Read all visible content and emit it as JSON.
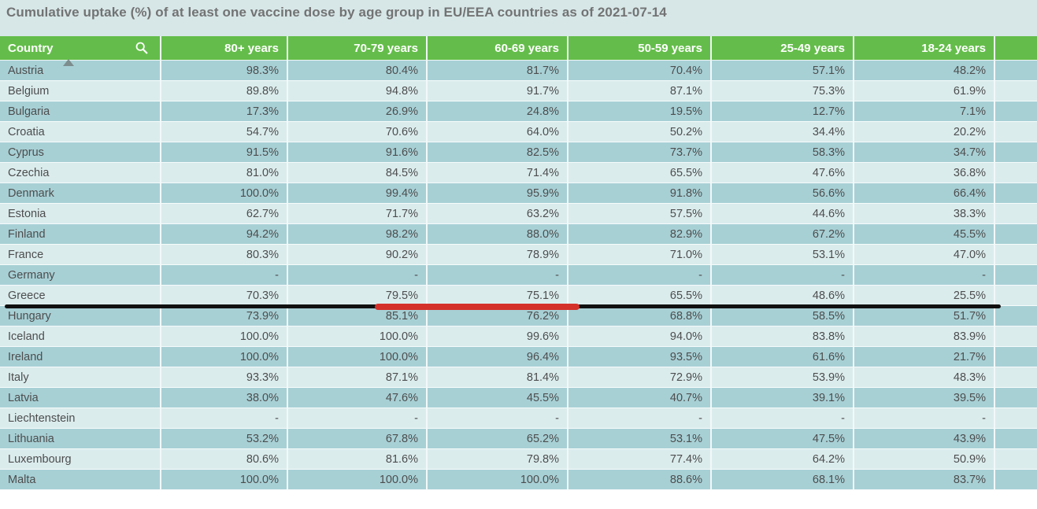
{
  "title": "Cumulative uptake (%) of at least one vaccine dose by age group in EU/EEA countries as of 2021-07-14",
  "table": {
    "columns": [
      "Country",
      "80+ years",
      "70-79 years",
      "60-69 years",
      "50-59 years",
      "25-49 years",
      "18-24 years"
    ],
    "sort": {
      "column": "Country",
      "direction": "ascending"
    },
    "rows": [
      {
        "country": "Austria",
        "values": [
          "98.3%",
          "80.4%",
          "81.7%",
          "70.4%",
          "57.1%",
          "48.2%"
        ]
      },
      {
        "country": "Belgium",
        "values": [
          "89.8%",
          "94.8%",
          "91.7%",
          "87.1%",
          "75.3%",
          "61.9%"
        ]
      },
      {
        "country": "Bulgaria",
        "values": [
          "17.3%",
          "26.9%",
          "24.8%",
          "19.5%",
          "12.7%",
          "7.1%"
        ]
      },
      {
        "country": "Croatia",
        "values": [
          "54.7%",
          "70.6%",
          "64.0%",
          "50.2%",
          "34.4%",
          "20.2%"
        ]
      },
      {
        "country": "Cyprus",
        "values": [
          "91.5%",
          "91.6%",
          "82.5%",
          "73.7%",
          "58.3%",
          "34.7%"
        ]
      },
      {
        "country": "Czechia",
        "values": [
          "81.0%",
          "84.5%",
          "71.4%",
          "65.5%",
          "47.6%",
          "36.8%"
        ]
      },
      {
        "country": "Denmark",
        "values": [
          "100.0%",
          "99.4%",
          "95.9%",
          "91.8%",
          "56.6%",
          "66.4%"
        ]
      },
      {
        "country": "Estonia",
        "values": [
          "62.7%",
          "71.7%",
          "63.2%",
          "57.5%",
          "44.6%",
          "38.3%"
        ]
      },
      {
        "country": "Finland",
        "values": [
          "94.2%",
          "98.2%",
          "88.0%",
          "82.9%",
          "67.2%",
          "45.5%"
        ]
      },
      {
        "country": "France",
        "values": [
          "80.3%",
          "90.2%",
          "78.9%",
          "71.0%",
          "53.1%",
          "47.0%"
        ]
      },
      {
        "country": "Germany",
        "values": [
          "-",
          "-",
          "-",
          "-",
          "-",
          "-"
        ]
      },
      {
        "country": "Greece",
        "values": [
          "70.3%",
          "79.5%",
          "75.1%",
          "65.5%",
          "48.6%",
          "25.5%"
        ]
      },
      {
        "country": "Hungary",
        "values": [
          "73.9%",
          "85.1%",
          "76.2%",
          "68.8%",
          "58.5%",
          "51.7%"
        ]
      },
      {
        "country": "Iceland",
        "values": [
          "100.0%",
          "100.0%",
          "99.6%",
          "94.0%",
          "83.8%",
          "83.9%"
        ]
      },
      {
        "country": "Ireland",
        "values": [
          "100.0%",
          "100.0%",
          "96.4%",
          "93.5%",
          "61.6%",
          "21.7%"
        ]
      },
      {
        "country": "Italy",
        "values": [
          "93.3%",
          "87.1%",
          "81.4%",
          "72.9%",
          "53.9%",
          "48.3%"
        ]
      },
      {
        "country": "Latvia",
        "values": [
          "38.0%",
          "47.6%",
          "45.5%",
          "40.7%",
          "39.1%",
          "39.5%"
        ]
      },
      {
        "country": "Liechtenstein",
        "values": [
          "-",
          "-",
          "-",
          "-",
          "-",
          "-"
        ]
      },
      {
        "country": "Lithuania",
        "values": [
          "53.2%",
          "67.8%",
          "65.2%",
          "53.1%",
          "47.5%",
          "43.9%"
        ]
      },
      {
        "country": "Luxembourg",
        "values": [
          "80.6%",
          "81.6%",
          "79.8%",
          "77.4%",
          "64.2%",
          "50.9%"
        ]
      },
      {
        "country": "Malta",
        "values": [
          "100.0%",
          "100.0%",
          "100.0%",
          "88.6%",
          "68.1%",
          "83.7%"
        ]
      }
    ]
  },
  "icons": {
    "search": "magnifier-search-icon",
    "sort": "triangle-up-sort-ascending-icon"
  },
  "annotation": {
    "type": "hand-drawn underline across the Greece row",
    "black_line": "full row width",
    "red_segment_under": [
      "70-79 years",
      "60-69 years"
    ],
    "highlighted_values": [
      "79.5%",
      "75.1%"
    ]
  },
  "colors": {
    "header_green": "#64bd4a",
    "row_teal": "#a7d0d5",
    "row_light": "#dbeced",
    "title_band": "#d7e7e8",
    "cell_text": "#4d4d4d",
    "title_text": "#737373",
    "annotation_black": "#111111",
    "annotation_red": "#d3312a"
  }
}
